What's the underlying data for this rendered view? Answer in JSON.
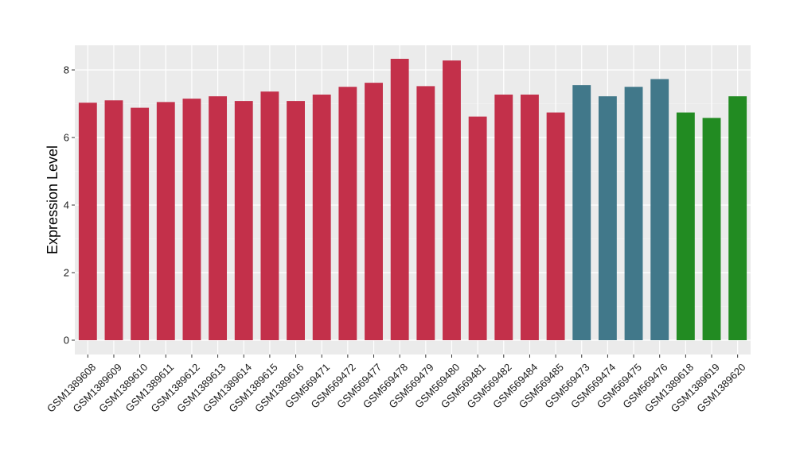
{
  "chart_data": {
    "type": "bar",
    "ylabel": "Expression Level",
    "xlabel": "",
    "ylim": [
      0,
      8.7
    ],
    "yticks": [
      0,
      2,
      4,
      6,
      8
    ],
    "grid": true,
    "background": "#EBEBEB",
    "categories": [
      "GSM1389608",
      "GSM1389609",
      "GSM1389610",
      "GSM1389611",
      "GSM1389612",
      "GSM1389613",
      "GSM1389614",
      "GSM1389615",
      "GSM1389616",
      "GSM569471",
      "GSM569472",
      "GSM569477",
      "GSM569478",
      "GSM569479",
      "GSM569480",
      "GSM569481",
      "GSM569482",
      "GSM569484",
      "GSM569485",
      "GSM569473",
      "GSM569474",
      "GSM569475",
      "GSM569476",
      "GSM1389618",
      "GSM1389619",
      "GSM1389620"
    ],
    "values": [
      7.03,
      7.1,
      6.88,
      7.05,
      7.15,
      7.22,
      7.08,
      7.36,
      7.08,
      7.27,
      7.5,
      7.62,
      8.33,
      7.52,
      8.28,
      6.62,
      7.27,
      7.27,
      6.74,
      7.55,
      7.22,
      7.5,
      7.73,
      6.74,
      6.58,
      7.22
    ],
    "groups": [
      "red",
      "red",
      "red",
      "red",
      "red",
      "red",
      "red",
      "red",
      "red",
      "red",
      "red",
      "red",
      "red",
      "red",
      "red",
      "red",
      "red",
      "red",
      "red",
      "blue",
      "blue",
      "blue",
      "blue",
      "green",
      "green",
      "green"
    ],
    "colors": {
      "red": "#C3304A",
      "blue": "#41788A",
      "green": "#228B22"
    }
  }
}
